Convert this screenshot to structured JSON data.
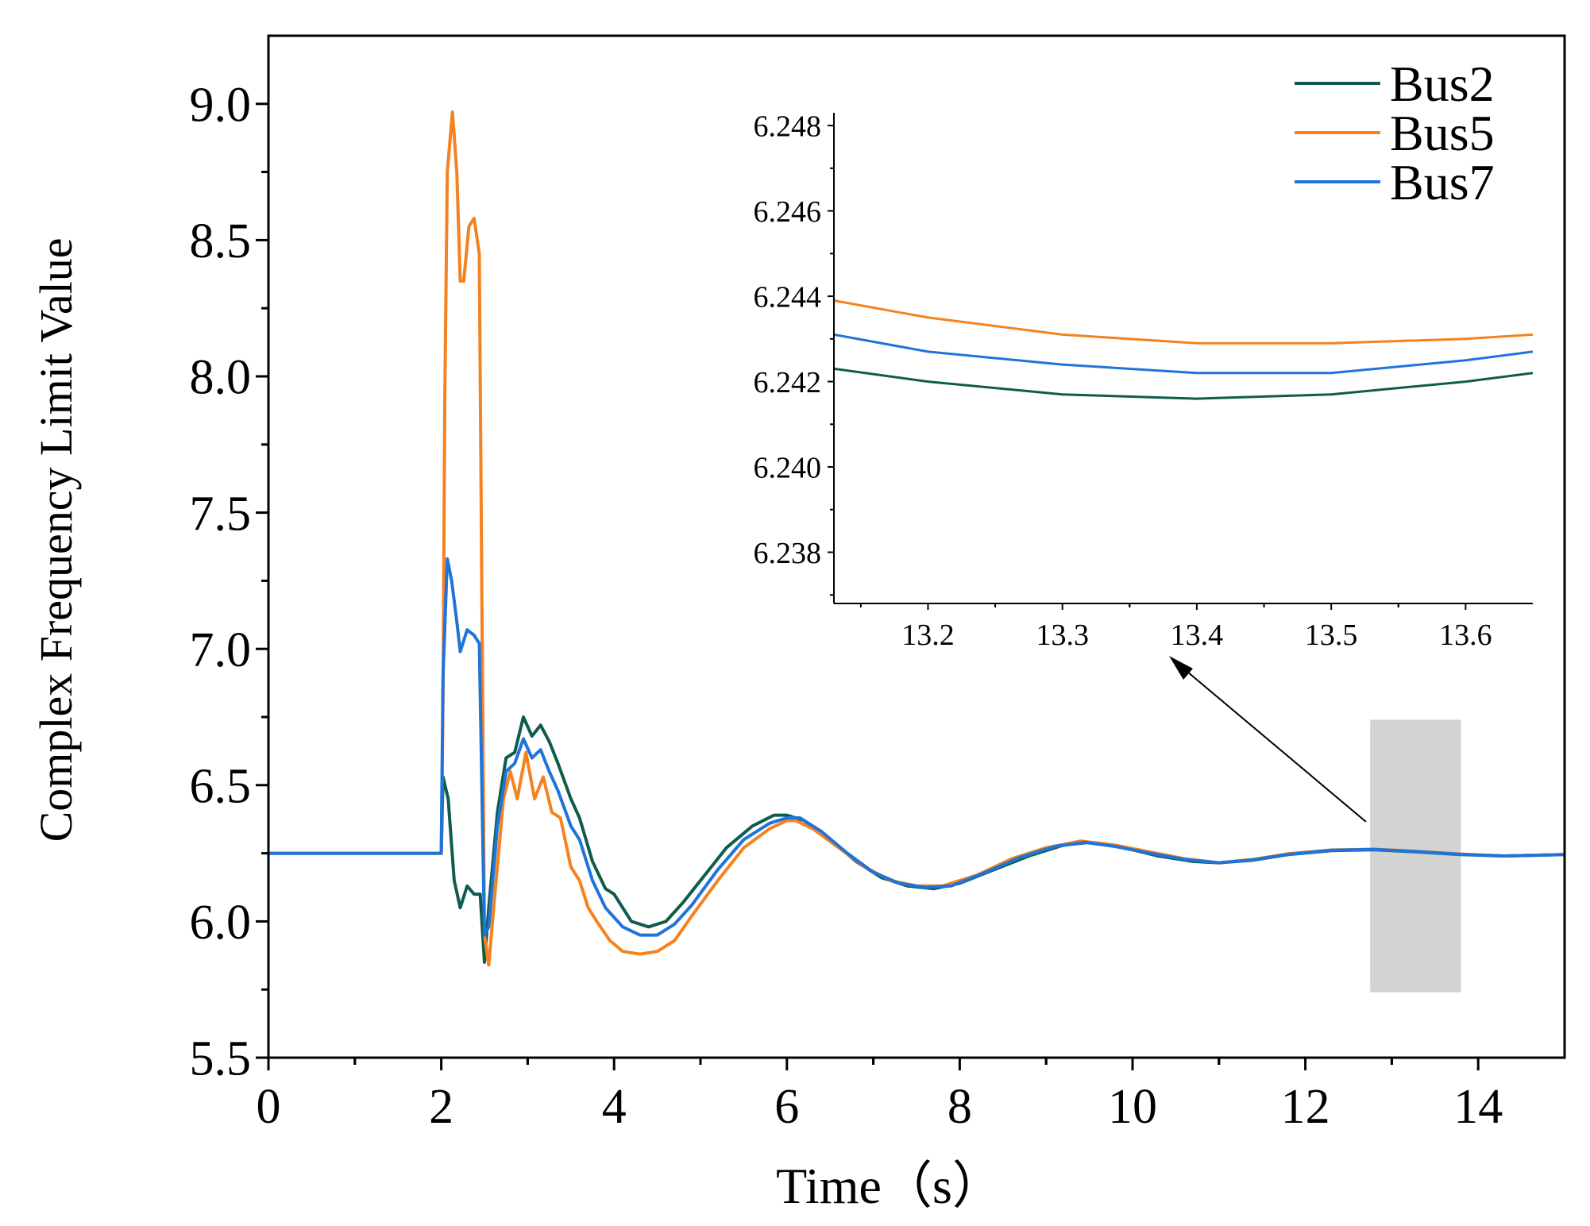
{
  "chart_data": [
    {
      "type": "line",
      "name": "main",
      "title": "",
      "xlabel": "Time（s）",
      "ylabel": "Complex Frequency Limit Value",
      "xlim": [
        0,
        15
      ],
      "ylim": [
        5.5,
        9.25
      ],
      "xticks": [
        0,
        2,
        4,
        6,
        8,
        10,
        12,
        14
      ],
      "xtick_labels": [
        "0",
        "2",
        "4",
        "6",
        "8",
        "10",
        "12",
        "14"
      ],
      "yticks": [
        5.5,
        6.0,
        6.5,
        7.0,
        7.5,
        8.0,
        8.5,
        9.0
      ],
      "ytick_labels": [
        "5.5",
        "6.0",
        "6.5",
        "7.0",
        "7.5",
        "8.0",
        "8.5",
        "9.0"
      ],
      "legend": {
        "position": "top-right",
        "entries": [
          "Bus2",
          "Bus5",
          "Bus7"
        ]
      },
      "highlight_region": {
        "x": [
          12.75,
          13.8
        ],
        "y": [
          5.74,
          6.74
        ],
        "color": "#d3d3d3"
      },
      "series": [
        {
          "name": "Bus2",
          "color": "#0f5c4e",
          "points": [
            [
              0,
              6.25
            ],
            [
              2.0,
              6.25
            ],
            [
              2.02,
              6.53
            ],
            [
              2.08,
              6.45
            ],
            [
              2.15,
              6.15
            ],
            [
              2.22,
              6.05
            ],
            [
              2.3,
              6.13
            ],
            [
              2.38,
              6.1
            ],
            [
              2.45,
              6.1
            ],
            [
              2.5,
              5.85
            ],
            [
              2.55,
              6.05
            ],
            [
              2.65,
              6.4
            ],
            [
              2.75,
              6.6
            ],
            [
              2.85,
              6.62
            ],
            [
              2.95,
              6.75
            ],
            [
              3.05,
              6.68
            ],
            [
              3.15,
              6.72
            ],
            [
              3.25,
              6.66
            ],
            [
              3.35,
              6.58
            ],
            [
              3.5,
              6.45
            ],
            [
              3.6,
              6.38
            ],
            [
              3.75,
              6.22
            ],
            [
              3.9,
              6.12
            ],
            [
              4.0,
              6.1
            ],
            [
              4.2,
              6.0
            ],
            [
              4.4,
              5.98
            ],
            [
              4.6,
              6.0
            ],
            [
              4.8,
              6.07
            ],
            [
              5.0,
              6.15
            ],
            [
              5.3,
              6.27
            ],
            [
              5.6,
              6.35
            ],
            [
              5.85,
              6.39
            ],
            [
              6.0,
              6.39
            ],
            [
              6.2,
              6.37
            ],
            [
              6.5,
              6.3
            ],
            [
              6.8,
              6.22
            ],
            [
              7.1,
              6.16
            ],
            [
              7.4,
              6.13
            ],
            [
              7.7,
              6.12
            ],
            [
              8.0,
              6.14
            ],
            [
              8.4,
              6.19
            ],
            [
              8.8,
              6.24
            ],
            [
              9.2,
              6.28
            ],
            [
              9.5,
              6.29
            ],
            [
              9.9,
              6.27
            ],
            [
              10.3,
              6.24
            ],
            [
              10.7,
              6.22
            ],
            [
              11.0,
              6.215
            ],
            [
              11.4,
              6.225
            ],
            [
              11.8,
              6.245
            ],
            [
              12.3,
              6.26
            ],
            [
              12.8,
              6.263
            ],
            [
              13.3,
              6.255
            ],
            [
              13.8,
              6.245
            ],
            [
              14.3,
              6.24
            ],
            [
              15.0,
              6.245
            ]
          ]
        },
        {
          "name": "Bus5",
          "color": "#f5821f",
          "points": [
            [
              0,
              6.25
            ],
            [
              2.0,
              6.25
            ],
            [
              2.02,
              6.8
            ],
            [
              2.04,
              7.9
            ],
            [
              2.07,
              8.75
            ],
            [
              2.13,
              8.97
            ],
            [
              2.18,
              8.75
            ],
            [
              2.22,
              8.35
            ],
            [
              2.26,
              8.35
            ],
            [
              2.32,
              8.55
            ],
            [
              2.38,
              8.58
            ],
            [
              2.44,
              8.45
            ],
            [
              2.47,
              7.2
            ],
            [
              2.5,
              5.95
            ],
            [
              2.55,
              5.84
            ],
            [
              2.62,
              6.1
            ],
            [
              2.72,
              6.45
            ],
            [
              2.8,
              6.55
            ],
            [
              2.88,
              6.45
            ],
            [
              2.98,
              6.62
            ],
            [
              3.08,
              6.45
            ],
            [
              3.18,
              6.53
            ],
            [
              3.28,
              6.4
            ],
            [
              3.38,
              6.38
            ],
            [
              3.5,
              6.2
            ],
            [
              3.6,
              6.15
            ],
            [
              3.7,
              6.05
            ],
            [
              3.8,
              6.0
            ],
            [
              3.95,
              5.93
            ],
            [
              4.1,
              5.89
            ],
            [
              4.3,
              5.88
            ],
            [
              4.5,
              5.89
            ],
            [
              4.7,
              5.93
            ],
            [
              4.9,
              6.02
            ],
            [
              5.2,
              6.15
            ],
            [
              5.5,
              6.27
            ],
            [
              5.8,
              6.34
            ],
            [
              6.0,
              6.37
            ],
            [
              6.1,
              6.37
            ],
            [
              6.3,
              6.34
            ],
            [
              6.6,
              6.27
            ],
            [
              6.9,
              6.2
            ],
            [
              7.2,
              6.15
            ],
            [
              7.5,
              6.13
            ],
            [
              7.8,
              6.13
            ],
            [
              8.2,
              6.17
            ],
            [
              8.6,
              6.23
            ],
            [
              9.0,
              6.27
            ],
            [
              9.4,
              6.295
            ],
            [
              9.8,
              6.28
            ],
            [
              10.2,
              6.255
            ],
            [
              10.6,
              6.23
            ],
            [
              11.0,
              6.215
            ],
            [
              11.4,
              6.228
            ],
            [
              11.8,
              6.248
            ],
            [
              12.3,
              6.262
            ],
            [
              12.8,
              6.265
            ],
            [
              13.3,
              6.257
            ],
            [
              13.8,
              6.247
            ],
            [
              14.3,
              6.24
            ],
            [
              15.0,
              6.245
            ]
          ]
        },
        {
          "name": "Bus7",
          "color": "#1f74d9",
          "points": [
            [
              0,
              6.25
            ],
            [
              2.0,
              6.25
            ],
            [
              2.02,
              6.9
            ],
            [
              2.07,
              7.33
            ],
            [
              2.12,
              7.25
            ],
            [
              2.18,
              7.1
            ],
            [
              2.22,
              6.99
            ],
            [
              2.3,
              7.07
            ],
            [
              2.38,
              7.05
            ],
            [
              2.44,
              7.02
            ],
            [
              2.47,
              6.5
            ],
            [
              2.5,
              5.95
            ],
            [
              2.55,
              5.98
            ],
            [
              2.65,
              6.35
            ],
            [
              2.75,
              6.55
            ],
            [
              2.85,
              6.58
            ],
            [
              2.95,
              6.67
            ],
            [
              3.05,
              6.6
            ],
            [
              3.15,
              6.63
            ],
            [
              3.25,
              6.55
            ],
            [
              3.35,
              6.48
            ],
            [
              3.5,
              6.35
            ],
            [
              3.6,
              6.3
            ],
            [
              3.75,
              6.15
            ],
            [
              3.9,
              6.05
            ],
            [
              4.1,
              5.98
            ],
            [
              4.3,
              5.95
            ],
            [
              4.5,
              5.95
            ],
            [
              4.7,
              5.99
            ],
            [
              4.9,
              6.06
            ],
            [
              5.2,
              6.19
            ],
            [
              5.5,
              6.3
            ],
            [
              5.8,
              6.36
            ],
            [
              6.0,
              6.38
            ],
            [
              6.15,
              6.38
            ],
            [
              6.4,
              6.33
            ],
            [
              6.7,
              6.25
            ],
            [
              7.0,
              6.18
            ],
            [
              7.3,
              6.14
            ],
            [
              7.6,
              6.125
            ],
            [
              7.9,
              6.13
            ],
            [
              8.3,
              6.18
            ],
            [
              8.7,
              6.235
            ],
            [
              9.1,
              6.275
            ],
            [
              9.45,
              6.29
            ],
            [
              9.8,
              6.275
            ],
            [
              10.2,
              6.25
            ],
            [
              10.6,
              6.228
            ],
            [
              11.0,
              6.215
            ],
            [
              11.4,
              6.226
            ],
            [
              11.8,
              6.246
            ],
            [
              12.3,
              6.261
            ],
            [
              12.8,
              6.264
            ],
            [
              13.3,
              6.256
            ],
            [
              13.8,
              6.246
            ],
            [
              14.3,
              6.24
            ],
            [
              15.0,
              6.245
            ]
          ]
        }
      ]
    },
    {
      "type": "line",
      "name": "inset",
      "title": "",
      "xlabel": "",
      "ylabel": "",
      "xlim": [
        13.13,
        13.65
      ],
      "ylim": [
        6.2368,
        6.2483
      ],
      "xticks": [
        13.2,
        13.3,
        13.4,
        13.5,
        13.6
      ],
      "xtick_labels": [
        "13.2",
        "13.3",
        "13.4",
        "13.5",
        "13.6"
      ],
      "yticks": [
        6.238,
        6.24,
        6.242,
        6.244,
        6.246,
        6.248
      ],
      "ytick_labels": [
        "6.238",
        "6.240",
        "6.242",
        "6.244",
        "6.246",
        "6.248"
      ],
      "series": [
        {
          "name": "Bus2",
          "color": "#0f5c4e",
          "points": [
            [
              13.13,
              6.2423
            ],
            [
              13.2,
              6.242
            ],
            [
              13.3,
              6.2417
            ],
            [
              13.4,
              6.2416
            ],
            [
              13.5,
              6.2417
            ],
            [
              13.6,
              6.242
            ],
            [
              13.65,
              6.2422
            ]
          ]
        },
        {
          "name": "Bus5",
          "color": "#f5821f",
          "points": [
            [
              13.13,
              6.2439
            ],
            [
              13.2,
              6.2435
            ],
            [
              13.3,
              6.2431
            ],
            [
              13.4,
              6.2429
            ],
            [
              13.5,
              6.2429
            ],
            [
              13.6,
              6.243
            ],
            [
              13.65,
              6.2431
            ]
          ]
        },
        {
          "name": "Bus7",
          "color": "#1f74d9",
          "points": [
            [
              13.13,
              6.2431
            ],
            [
              13.2,
              6.2427
            ],
            [
              13.3,
              6.2424
            ],
            [
              13.4,
              6.2422
            ],
            [
              13.5,
              6.2422
            ],
            [
              13.6,
              6.2425
            ],
            [
              13.65,
              6.2427
            ]
          ]
        }
      ]
    }
  ]
}
